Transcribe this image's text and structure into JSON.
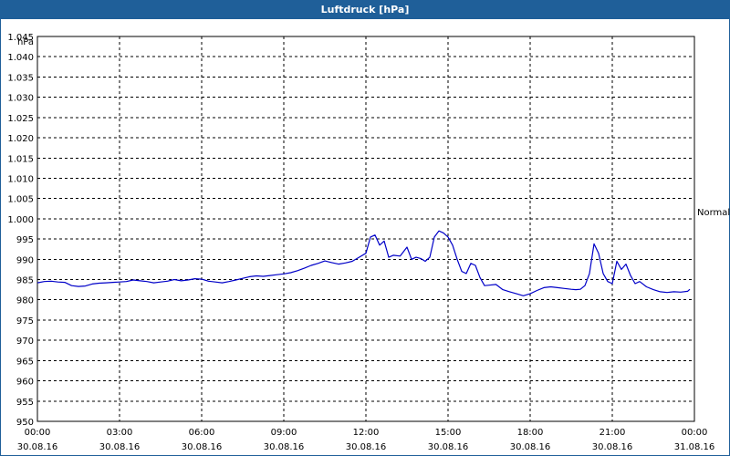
{
  "window": {
    "title": "Luftdruck [hPa]"
  },
  "colors": {
    "titlebar": "#1f5f99",
    "series": "#0000c8",
    "grid": "#000000"
  },
  "chart_data": {
    "type": "line",
    "title": "Luftdruck [hPa]",
    "unit_label": "hPa",
    "ylim": [
      950,
      1045
    ],
    "ytick_values": [
      950,
      955,
      960,
      965,
      970,
      975,
      980,
      985,
      990,
      995,
      1000,
      1005,
      1010,
      1015,
      1020,
      1025,
      1030,
      1035,
      1040,
      1045
    ],
    "ytick_labels": [
      "950",
      "955",
      "960",
      "965",
      "970",
      "975",
      "980",
      "985",
      "990",
      "995",
      "1.000",
      "1.005",
      "1.010",
      "1.015",
      "1.020",
      "1.025",
      "1.030",
      "1.035",
      "1.040",
      "1.045"
    ],
    "xlim": [
      "30.08.16 00:00",
      "31.08.16 00:00"
    ],
    "xticks": [
      {
        "time": "00:00",
        "date": "30.08.16"
      },
      {
        "time": "03:00",
        "date": "30.08.16"
      },
      {
        "time": "06:00",
        "date": "30.08.16"
      },
      {
        "time": "09:00",
        "date": "30.08.16"
      },
      {
        "time": "12:00",
        "date": "30.08.16"
      },
      {
        "time": "15:00",
        "date": "30.08.16"
      },
      {
        "time": "18:00",
        "date": "30.08.16"
      },
      {
        "time": "21:00",
        "date": "30.08.16"
      },
      {
        "time": "00:00",
        "date": "31.08.16"
      }
    ],
    "grid": true,
    "reference_line": {
      "label": "Normal"
    },
    "series": [
      {
        "x": [
          "00:00",
          "00:15",
          "00:30",
          "00:45",
          "01:00",
          "01:15",
          "01:30",
          "01:45",
          "02:00",
          "02:15",
          "02:30",
          "02:45",
          "03:00",
          "03:15",
          "03:30",
          "03:45",
          "04:00",
          "04:15",
          "04:30",
          "04:45",
          "05:00",
          "05:15",
          "05:30",
          "05:45",
          "06:00",
          "06:15",
          "06:30",
          "06:45",
          "07:00",
          "07:15",
          "07:30",
          "07:45",
          "08:00",
          "08:15",
          "08:30",
          "08:45",
          "09:00",
          "09:15",
          "09:30",
          "09:45",
          "10:00",
          "10:15",
          "10:30",
          "10:45",
          "11:00",
          "11:15",
          "11:30",
          "11:45",
          "12:00",
          "12:10",
          "12:20",
          "12:30",
          "12:40",
          "12:50",
          "13:00",
          "13:15",
          "13:30",
          "13:40",
          "13:50",
          "14:00",
          "14:10",
          "14:20",
          "14:30",
          "14:40",
          "14:50",
          "15:00",
          "15:10",
          "15:20",
          "15:30",
          "15:40",
          "15:50",
          "16:00",
          "16:10",
          "16:20",
          "16:30",
          "16:45",
          "17:00",
          "17:15",
          "17:30",
          "17:45",
          "18:00",
          "18:15",
          "18:30",
          "18:45",
          "19:00",
          "19:15",
          "19:30",
          "19:40",
          "19:50",
          "20:00",
          "20:10",
          "20:20",
          "20:30",
          "20:40",
          "20:50",
          "21:00",
          "21:10",
          "21:20",
          "21:30",
          "21:40",
          "21:50",
          "22:00",
          "22:15",
          "22:30",
          "22:45",
          "23:00",
          "23:15",
          "23:30",
          "23:45",
          "23:50"
        ],
        "values": [
          984.2,
          984.5,
          984.6,
          984.4,
          984.3,
          983.5,
          983.3,
          983.4,
          983.9,
          984.1,
          984.2,
          984.3,
          984.4,
          984.5,
          984.9,
          984.7,
          984.5,
          984.2,
          984.4,
          984.6,
          985.0,
          984.7,
          984.9,
          985.2,
          985.1,
          984.6,
          984.4,
          984.2,
          984.5,
          984.9,
          985.3,
          985.7,
          985.9,
          985.8,
          986.0,
          986.2,
          986.4,
          986.7,
          987.2,
          987.8,
          988.5,
          989.0,
          989.6,
          989.2,
          988.8,
          989.1,
          989.5,
          990.5,
          991.5,
          995.5,
          996.0,
          993.5,
          994.5,
          990.5,
          991.0,
          990.8,
          993.0,
          990.0,
          990.5,
          990.2,
          989.5,
          990.5,
          995.5,
          997.0,
          996.5,
          995.5,
          993.5,
          990.0,
          987.0,
          986.5,
          989.0,
          988.5,
          985.5,
          983.5,
          983.6,
          983.8,
          982.5,
          982.0,
          981.5,
          981.0,
          981.5,
          982.3,
          983.0,
          983.2,
          983.0,
          982.8,
          982.6,
          982.5,
          982.6,
          983.5,
          986.5,
          993.8,
          991.5,
          986.5,
          984.5,
          984.0,
          989.5,
          987.5,
          988.8,
          986.0,
          984.0,
          984.5,
          983.2,
          982.5,
          982.0,
          981.8,
          982.0,
          981.9,
          982.1,
          982.6
        ]
      }
    ]
  }
}
